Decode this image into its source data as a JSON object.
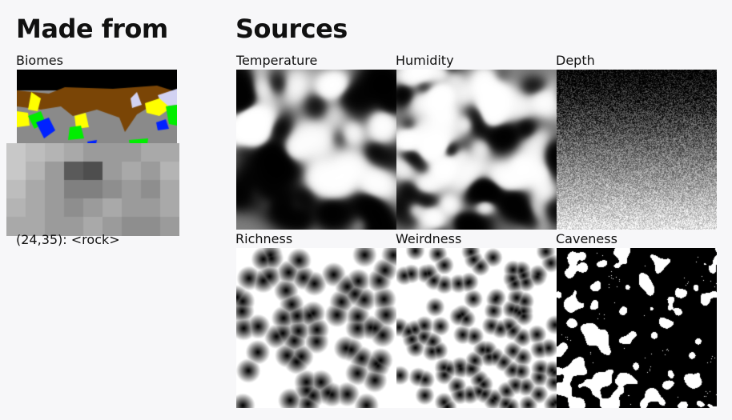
{
  "made_from": {
    "heading": "Made from",
    "biomes": {
      "label": "Biomes",
      "colors": {
        "void": "#000000",
        "dirt": "#7a4506",
        "rock": "#8a8a8a",
        "grass": "#00ee00",
        "water": "#0022ff",
        "sand": "#ffff00",
        "ice": "#d2d2f2"
      }
    },
    "readout": "(24,35): <rock>",
    "magnifier_colors": [
      "#c8c8c8",
      "#bdbdbd",
      "#b4b4b4",
      "#a9a9a9",
      "#9b9b9b",
      "#8e8e8e",
      "#808080",
      "#6e6e6e",
      "#5a5a5a",
      "#4e4e4e"
    ]
  },
  "sources": {
    "heading": "Sources",
    "maps": [
      {
        "label": "Temperature",
        "kind": "blobs"
      },
      {
        "label": "Humidity",
        "kind": "blobs-fine"
      },
      {
        "label": "Depth",
        "kind": "gradient-noise"
      },
      {
        "label": "Richness",
        "kind": "voronoi"
      },
      {
        "label": "Weirdness",
        "kind": "voronoi-fine"
      },
      {
        "label": "Caveness",
        "kind": "threshold"
      }
    ]
  }
}
